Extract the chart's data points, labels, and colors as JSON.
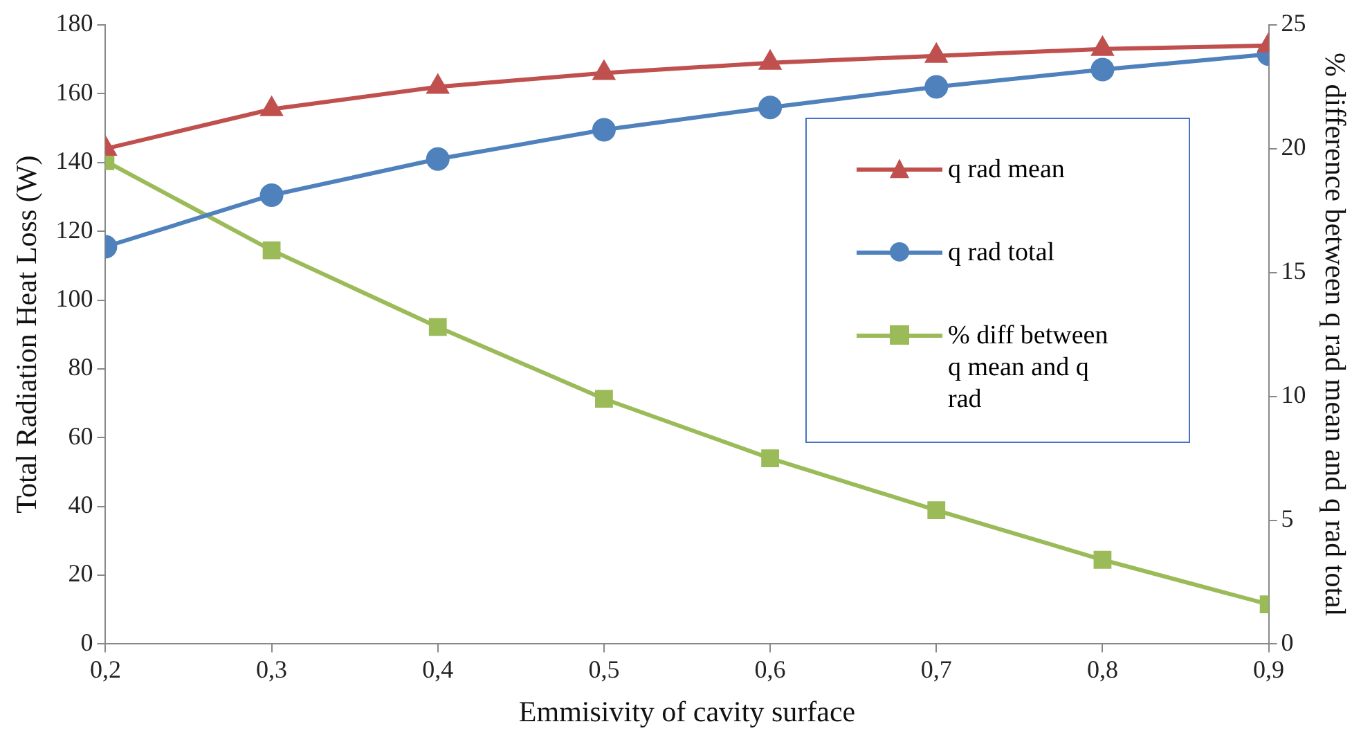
{
  "chart_data": {
    "type": "line",
    "xlabel": "Emmisivity of cavity surface",
    "ylabel": "Total Radiation Heat Loss (W)",
    "y2label": "% difference between q rad mean and q rad total",
    "x": [
      0.2,
      0.3,
      0.4,
      0.5,
      0.6,
      0.7,
      0.8,
      0.9
    ],
    "xlim": [
      0.2,
      0.9
    ],
    "xticks": [
      {
        "value": 0.2,
        "label": "0,2"
      },
      {
        "value": 0.3,
        "label": "0,3"
      },
      {
        "value": 0.4,
        "label": "0,4"
      },
      {
        "value": 0.5,
        "label": "0,5"
      },
      {
        "value": 0.6,
        "label": "0,6"
      },
      {
        "value": 0.7,
        "label": "0,7"
      },
      {
        "value": 0.8,
        "label": "0,8"
      },
      {
        "value": 0.9,
        "label": "0,9"
      }
    ],
    "ylim": [
      0,
      180
    ],
    "yticks": [
      0,
      20,
      40,
      60,
      80,
      100,
      120,
      140,
      160,
      180
    ],
    "y2lim": [
      0,
      25
    ],
    "y2ticks": [
      0,
      5,
      10,
      15,
      20,
      25
    ],
    "grid": false,
    "legend": "right",
    "series": [
      {
        "name": "q rad mean",
        "color": "#c0504d",
        "marker": "triangle",
        "values": [
          144,
          155.5,
          162,
          166,
          169,
          171,
          173,
          174
        ]
      },
      {
        "name": "q rad total",
        "color": "#4f81bd",
        "marker": "circle",
        "values": [
          115.5,
          130.5,
          141,
          149.5,
          156,
          162,
          167,
          171.5
        ]
      },
      {
        "name": "% diff between q mean and q rad",
        "color": "#9bbb59",
        "marker": "square",
        "axis": "y2",
        "values": [
          19.5,
          15.9,
          12.8,
          9.9,
          7.5,
          5.4,
          3.4,
          1.6
        ]
      }
    ]
  }
}
